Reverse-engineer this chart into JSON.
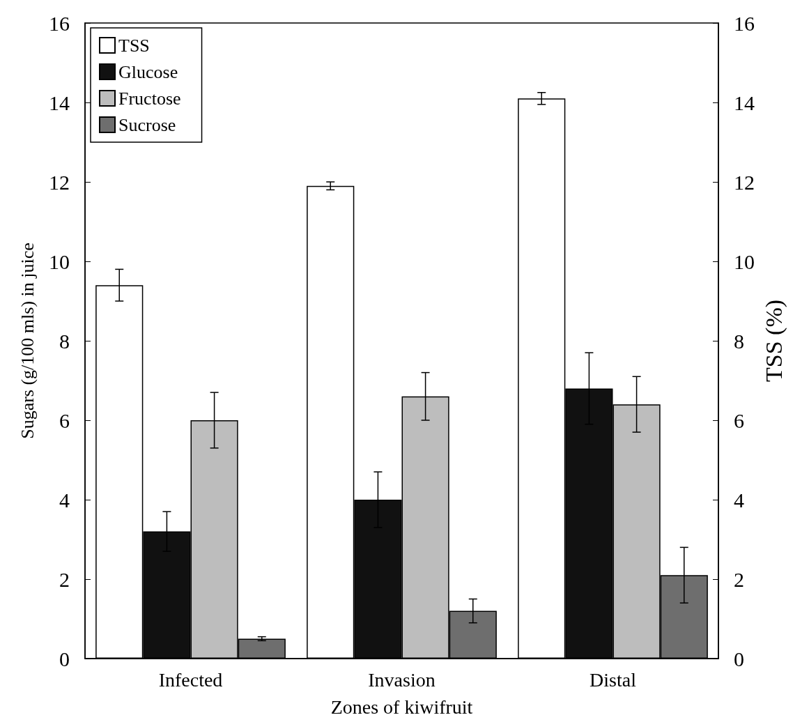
{
  "chart_data": {
    "type": "bar",
    "xlabel": "Zones of kiwifruit",
    "ylabel": "Sugars (g/100 mls) in juice",
    "y2label": "TSS (%)",
    "categories": [
      "Infected",
      "Invasion",
      "Distal"
    ],
    "series": [
      {
        "name": "TSS",
        "color": "#ffffff",
        "axis": "y2",
        "values": [
          9.4,
          11.9,
          14.1
        ],
        "errors": [
          0.4,
          0.1,
          0.15
        ]
      },
      {
        "name": "Glucose",
        "color": "#111111",
        "values": [
          3.2,
          4.0,
          6.8
        ],
        "errors": [
          0.5,
          0.7,
          0.9
        ]
      },
      {
        "name": "Fructose",
        "color": "#bdbdbd",
        "values": [
          6.0,
          6.6,
          6.4
        ],
        "errors": [
          0.7,
          0.6,
          0.7
        ]
      },
      {
        "name": "Sucrose",
        "color": "#6e6e6e",
        "values": [
          0.5,
          1.2,
          2.1
        ],
        "errors": [
          0.05,
          0.3,
          0.7
        ]
      }
    ],
    "ylim": [
      0,
      16
    ],
    "yticks": [
      0,
      2,
      4,
      6,
      8,
      10,
      12,
      14,
      16
    ],
    "y2lim": [
      0,
      16
    ],
    "y2ticks": [
      0,
      2,
      4,
      6,
      8,
      10,
      12,
      14,
      16
    ],
    "legend": "top left",
    "grid": false
  }
}
